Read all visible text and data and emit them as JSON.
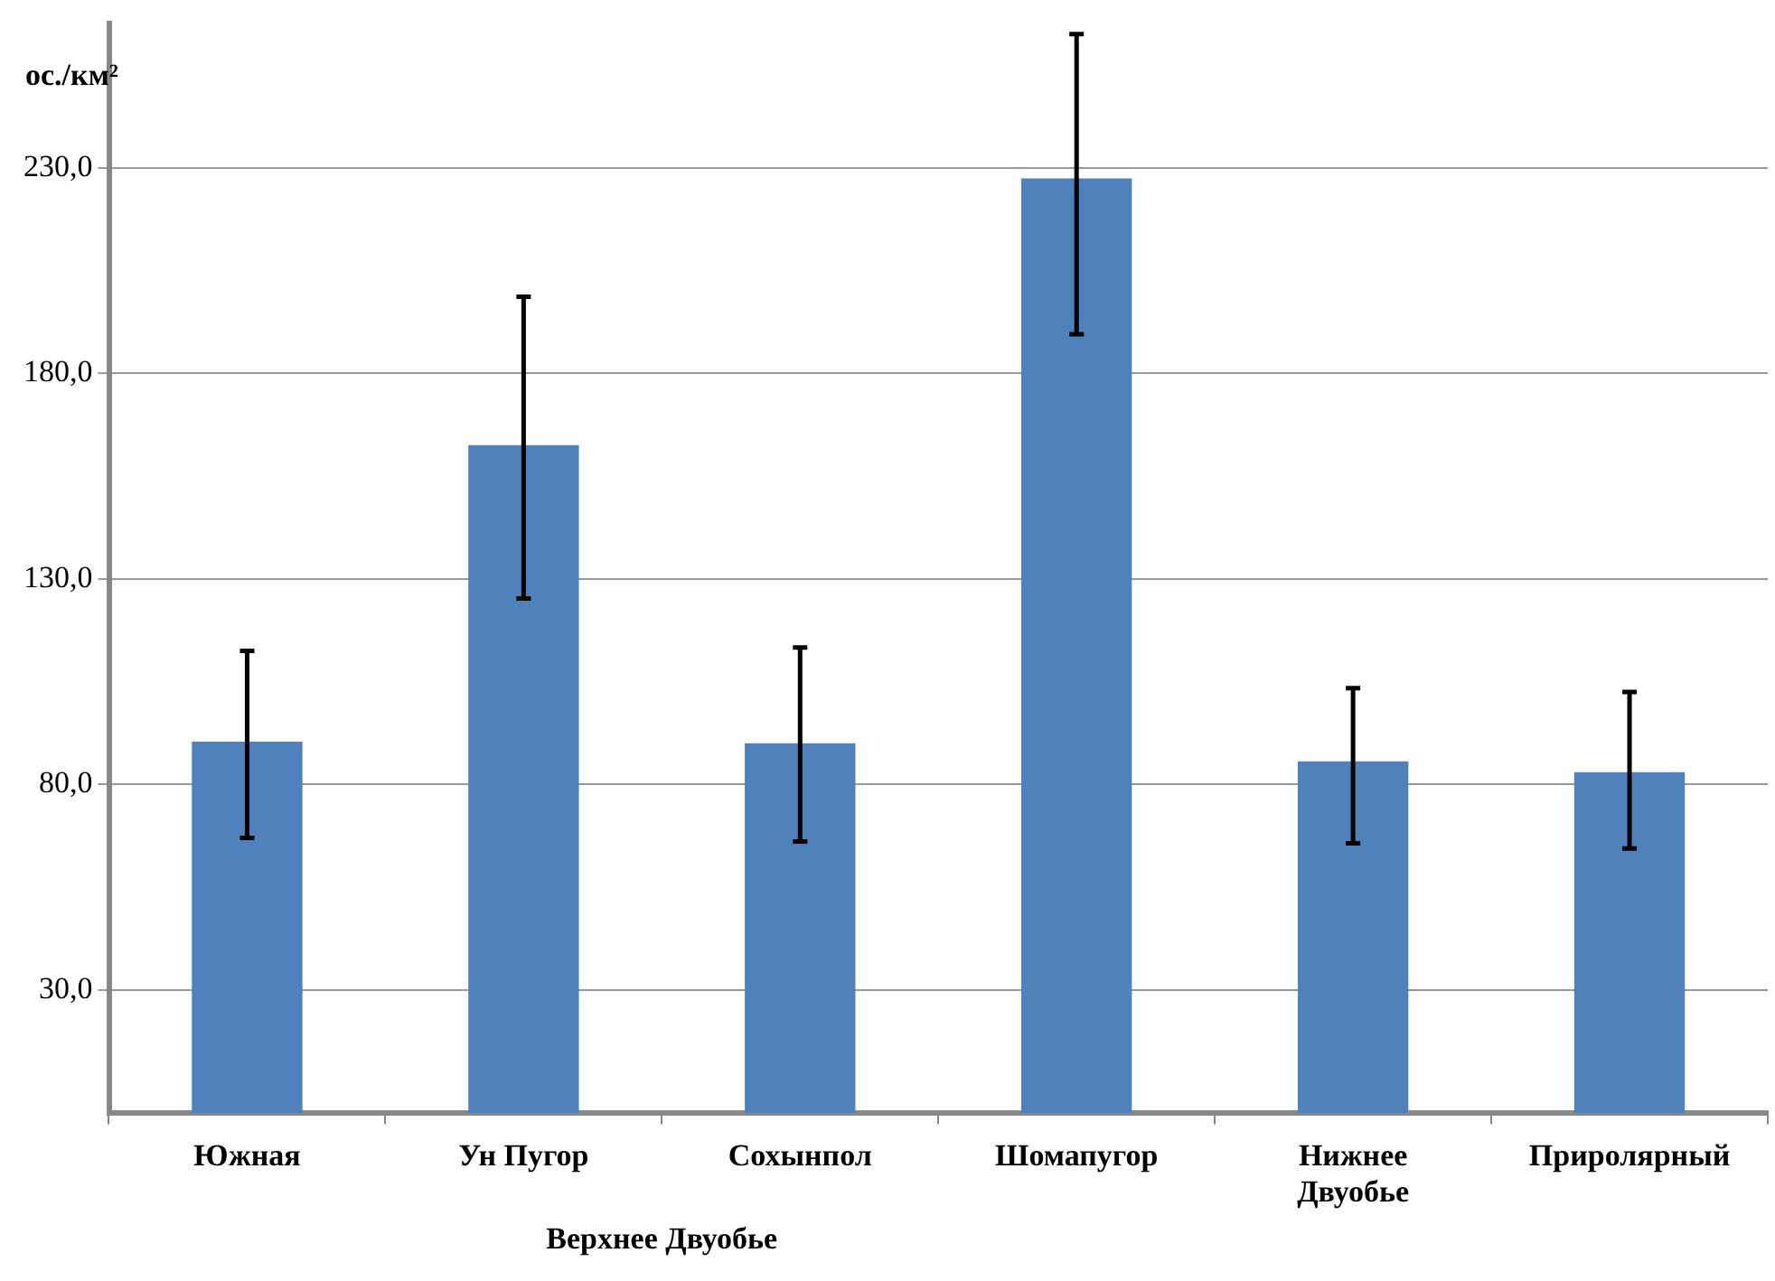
{
  "chart_data": {
    "type": "bar",
    "ylabel": "ос./км²",
    "categories": [
      "Южная",
      "Ун Пугор",
      "Сохынпол",
      "Шомапугор",
      "Нижнее Двуобье",
      "Приролярный"
    ],
    "values": [
      90.4,
      162.5,
      90,
      227.4,
      85.6,
      83
    ],
    "errors": [
      [
        67,
        112.5
      ],
      [
        125.2,
        198.6
      ],
      [
        66.1,
        113.3
      ],
      [
        189.5,
        262.5
      ],
      [
        65.7,
        103.4
      ],
      [
        64.4,
        102.5
      ]
    ],
    "color": "#4f81bd",
    "ylim": [
      0,
      265
    ],
    "yticks": [
      {
        "value": 30,
        "label": "30,0"
      },
      {
        "value": 80,
        "label": "80,0"
      },
      {
        "value": 130,
        "label": "130,0"
      },
      {
        "value": 180,
        "label": "180,0"
      },
      {
        "value": 230,
        "label": "230,0"
      }
    ],
    "grid": "y",
    "legend": false,
    "annotations": [
      "Верхнее Двуобье"
    ]
  }
}
